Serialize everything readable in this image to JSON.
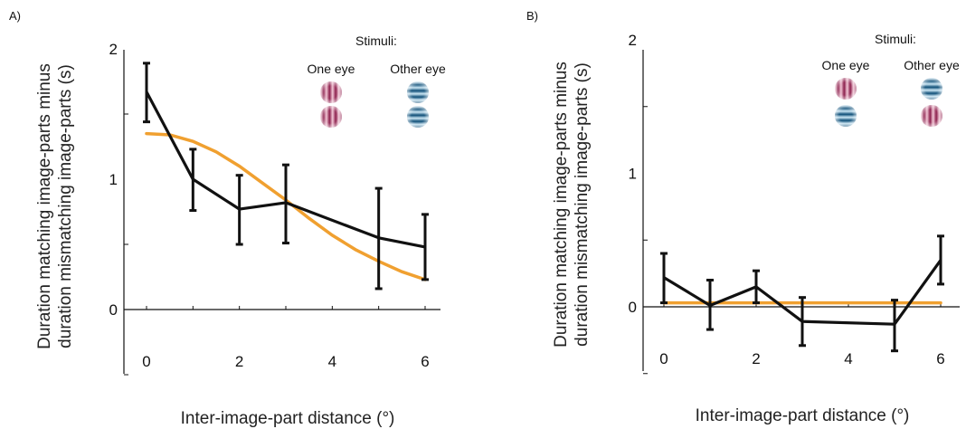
{
  "figure": {
    "panels": [
      "A)",
      "B)"
    ]
  },
  "colors": {
    "data_line": "#111111",
    "fit_line": "#f0a030",
    "red_grating_dark": "#8c1f4c",
    "red_grating_light": "#f2c7d6",
    "blue_grating_dark": "#0f4f78",
    "blue_grating_light": "#cbe6f4"
  },
  "icons": [
    "red-grating-icon",
    "blue-grating-icon"
  ],
  "chart_data": [
    {
      "type": "line",
      "panel": "A)",
      "xlabel": "Inter-image-part distance (°)",
      "ylabel": [
        "Duration matching image-parts minus",
        "duration mismatching image-parts (s)"
      ],
      "xlim": [
        0,
        6
      ],
      "ylim": [
        -0.5,
        2
      ],
      "xticks": [
        0,
        2,
        4,
        6
      ],
      "yticks": [
        0,
        1,
        2
      ],
      "series": [
        {
          "x": [
            0,
            1,
            2,
            3,
            5,
            6
          ],
          "y": [
            1.67,
            1.0,
            0.77,
            0.82,
            0.55,
            0.48
          ],
          "err_low": [
            1.44,
            0.76,
            0.5,
            0.51,
            0.16,
            0.23
          ],
          "err_high": [
            1.89,
            1.23,
            1.03,
            1.11,
            0.93,
            0.73
          ]
        }
      ],
      "fit": {
        "x": [
          0,
          0.5,
          1,
          1.5,
          2,
          2.5,
          3,
          3.5,
          4,
          4.5,
          5,
          5.5,
          6
        ],
        "y": [
          1.35,
          1.34,
          1.29,
          1.21,
          1.1,
          0.97,
          0.84,
          0.7,
          0.57,
          0.46,
          0.37,
          0.29,
          0.23
        ]
      },
      "stimuli": {
        "title": "Stimuli:",
        "columns": [
          {
            "label": "One eye",
            "top": "red-grating-icon",
            "bottom": "red-grating-icon"
          },
          {
            "label": "Other eye",
            "top": "blue-grating-icon",
            "bottom": "blue-grating-icon"
          }
        ]
      }
    },
    {
      "type": "line",
      "panel": "B)",
      "xlabel": "Inter-image-part distance (°)",
      "ylabel": [
        "Duration matching image-parts minus",
        "duration mismatching image-parts (s)"
      ],
      "xlim": [
        0,
        6
      ],
      "ylim": [
        -0.5,
        2
      ],
      "xticks": [
        0,
        2,
        4,
        6
      ],
      "yticks": [
        0,
        1,
        2
      ],
      "series": [
        {
          "x": [
            0,
            1,
            2,
            3,
            5,
            6
          ],
          "y": [
            0.22,
            0.01,
            0.15,
            -0.11,
            -0.13,
            0.35
          ],
          "err_low": [
            0.03,
            -0.17,
            0.03,
            -0.29,
            -0.33,
            0.17
          ],
          "err_high": [
            0.4,
            0.2,
            0.27,
            0.07,
            0.05,
            0.53
          ]
        }
      ],
      "fit": {
        "x": [
          0,
          6
        ],
        "y": [
          0.03,
          0.03
        ]
      },
      "stimuli": {
        "title": "Stimuli:",
        "columns": [
          {
            "label": "One eye",
            "top": "red-grating-icon",
            "bottom": "blue-grating-icon"
          },
          {
            "label": "Other eye",
            "top": "blue-grating-icon",
            "bottom": "red-grating-icon"
          }
        ]
      }
    }
  ]
}
